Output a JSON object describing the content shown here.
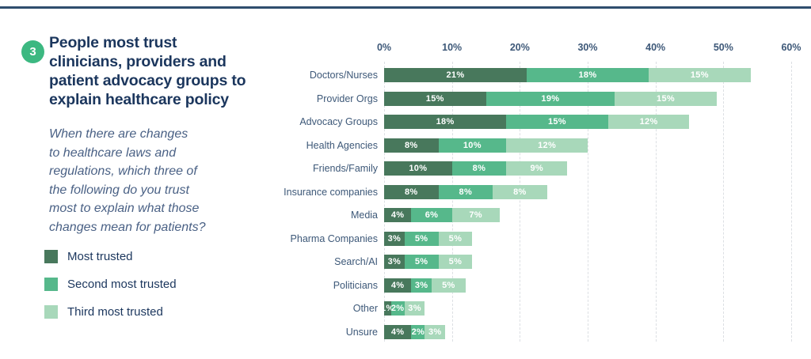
{
  "page": {
    "badge": "3",
    "title_lines": [
      "People most trust",
      "clinicians, providers and",
      "patient advocacy groups to",
      "explain healthcare policy"
    ],
    "question_lines": [
      "When there are changes",
      "to healthcare laws and",
      "regulations, which three of",
      "the following do you trust",
      "most to explain what those",
      "changes mean for patients?"
    ]
  },
  "legend": {
    "items": [
      {
        "label": "Most trusted",
        "color": "#48785c"
      },
      {
        "label": "Second most trusted",
        "color": "#56b88b"
      },
      {
        "label": "Third most trusted",
        "color": "#a8d8ba"
      }
    ]
  },
  "chart_data": {
    "type": "bar",
    "orientation": "horizontal",
    "stacked": true,
    "title": "People most trust clinicians, providers and patient advocacy groups to explain healthcare policy",
    "categories": [
      "Doctors/Nurses",
      "Provider Orgs",
      "Advocacy Groups",
      "Health Agencies",
      "Friends/Family",
      "Insurance companies",
      "Media",
      "Pharma Companies",
      "Search/AI",
      "Politicians",
      "Other",
      "Unsure"
    ],
    "series": [
      {
        "name": "Most trusted",
        "color": "#48785c",
        "values": [
          21,
          15,
          18,
          8,
          10,
          8,
          4,
          3,
          3,
          4,
          1,
          4
        ]
      },
      {
        "name": "Second most trusted",
        "color": "#56b88b",
        "values": [
          18,
          19,
          15,
          10,
          8,
          8,
          6,
          5,
          5,
          3,
          2,
          2
        ]
      },
      {
        "name": "Third most trusted",
        "color": "#a8d8ba",
        "values": [
          15,
          15,
          12,
          12,
          9,
          8,
          7,
          5,
          5,
          5,
          3,
          3
        ]
      }
    ],
    "x_ticks": [
      "0%",
      "10%",
      "20%",
      "30%",
      "40%",
      "50%",
      "60%"
    ],
    "xlim": [
      0,
      60
    ],
    "value_suffix": "%",
    "xlabel": "",
    "ylabel": "",
    "grid": "vertical-dashed",
    "legend_position": "left"
  },
  "colors": {
    "navy": "#1b365d",
    "text_soft": "#4a6185",
    "label": "#3d5878",
    "rule": "#2f4d6e",
    "grid": "#dcdfe3",
    "badge_green": "#3cb881",
    "bar_dark": "#48785c",
    "bar_mid": "#56b88b",
    "bar_light": "#a8d8ba",
    "value_text": "#ffffff"
  }
}
